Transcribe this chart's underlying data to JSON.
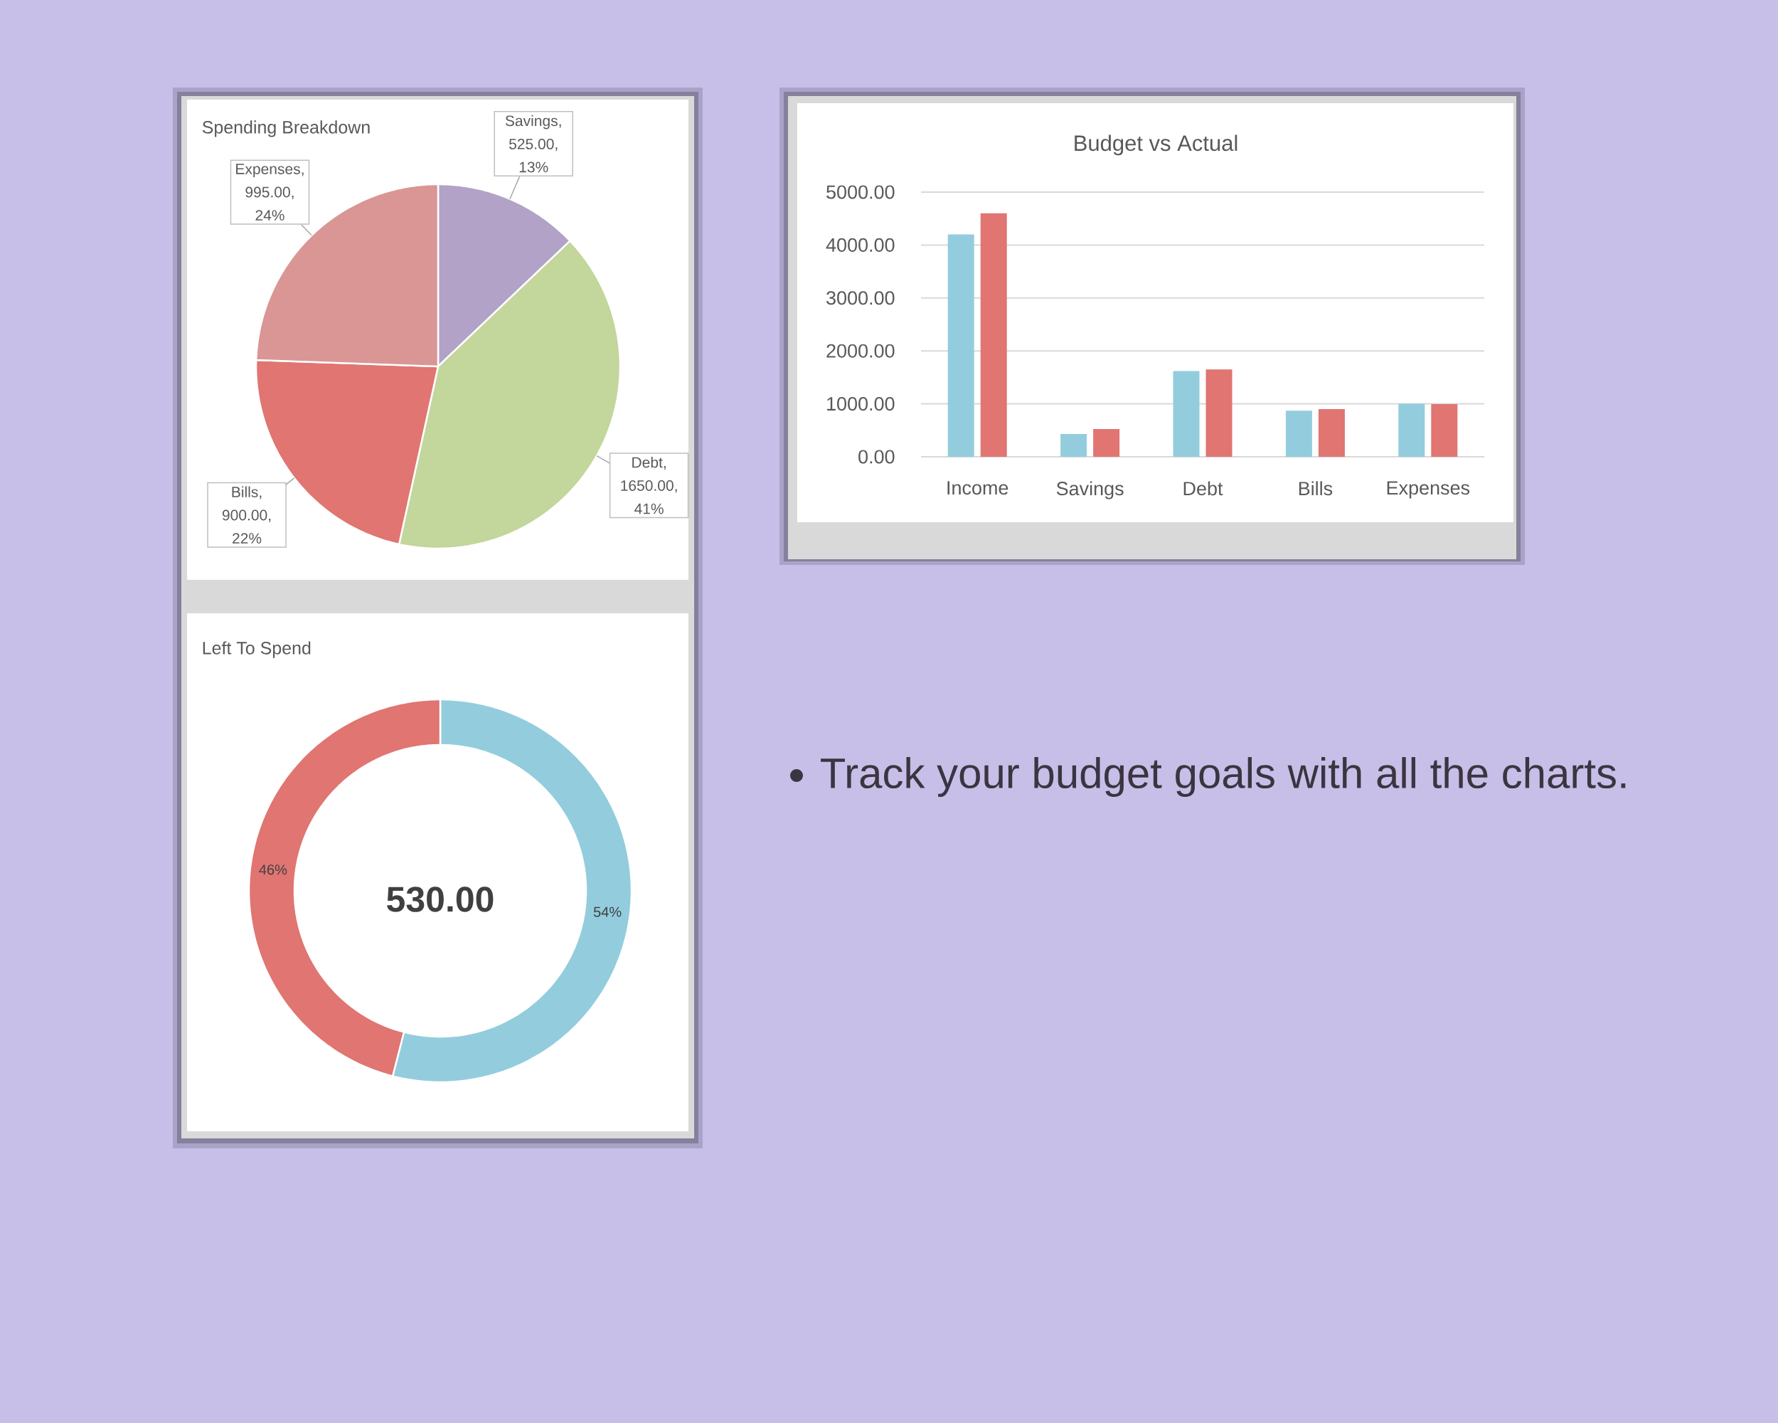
{
  "chart_data": [
    {
      "type": "pie",
      "title": "Spending Breakdown",
      "categories": [
        "Savings",
        "Debt",
        "Bills",
        "Expenses"
      ],
      "values": [
        525,
        1650,
        900,
        995
      ],
      "colors": [
        "#b3a2c7",
        "#c3d69b",
        "#e07572",
        "#d99694"
      ],
      "value_labels": [
        ", 525.00, 13%",
        ", 1650.00, 41%",
        ", 900.00, 22%",
        ", 995.00, 24%"
      ]
    },
    {
      "type": "bar",
      "title": "Budget vs Actual",
      "categories": [
        "Income",
        "Savings",
        "Debt",
        "Bills",
        "Expenses"
      ],
      "series": [
        {
          "color": "#93cddd",
          "values": [
            4200,
            430,
            1620,
            870,
            1000
          ]
        },
        {
          "color": "#e07572",
          "values": [
            4600,
            525,
            1650,
            900,
            995
          ]
        }
      ],
      "ylim": [
        0,
        5000
      ],
      "yticks": [
        {
          "value": 0,
          "label": "0.00"
        },
        {
          "value": 1000,
          "label": "1000.00"
        },
        {
          "value": 2000,
          "label": "2000.00"
        },
        {
          "value": 3000,
          "label": "3000.00"
        },
        {
          "value": 4000,
          "label": "4000.00"
        },
        {
          "value": 5000,
          "label": "5000.00"
        }
      ],
      "grid": "y"
    },
    {
      "type": "donut",
      "title": "Left To Spend",
      "categories": [
        null,
        null
      ],
      "values": [
        54,
        46
      ],
      "colors": [
        "#93cddd",
        "#e07572"
      ],
      "value_labels": [
        "54%",
        "46%"
      ],
      "annotations": [
        "530.00"
      ]
    },
    {
      "type": "other",
      "annotations": [
        "Track your budget goals with all the charts."
      ]
    }
  ]
}
